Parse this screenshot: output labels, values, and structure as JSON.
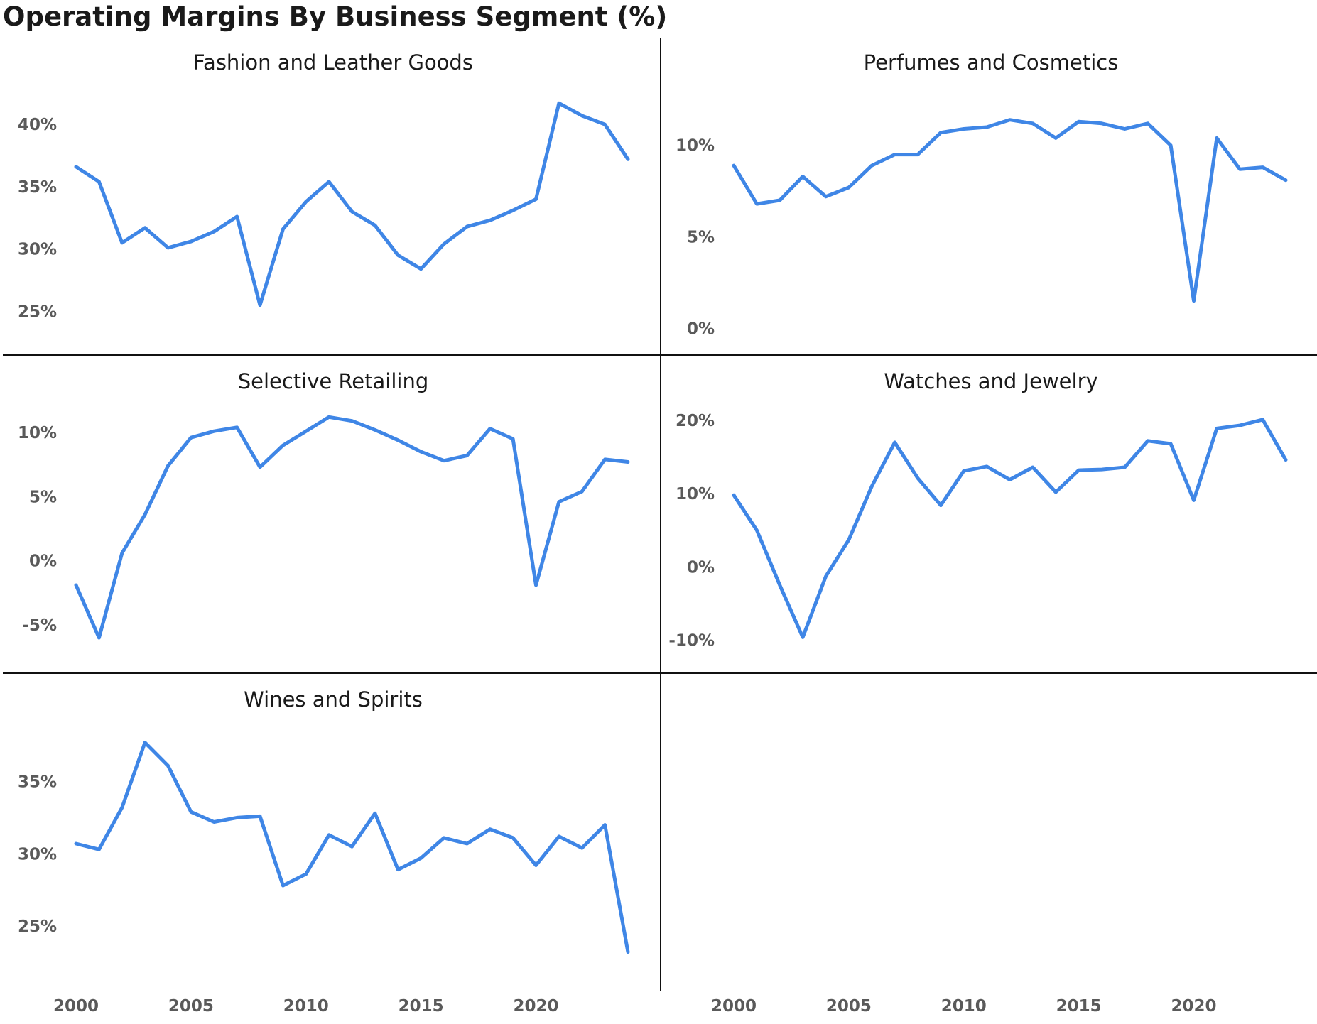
{
  "chart_title": "Operating Margins By Business Segment (%)",
  "colors": {
    "line": "#3f86e6",
    "axis_text": "#5a5a5a",
    "divider": "#111111"
  },
  "chart_data": [
    {
      "type": "line",
      "title": "Fashion and Leather Goods",
      "x": [
        2000,
        2001,
        2002,
        2003,
        2004,
        2005,
        2006,
        2007,
        2008,
        2009,
        2010,
        2011,
        2012,
        2013,
        2014,
        2015,
        2016,
        2017,
        2018,
        2019,
        2020,
        2021,
        2022,
        2023,
        2024
      ],
      "values": [
        36.6,
        35.4,
        30.5,
        31.7,
        30.1,
        30.6,
        31.4,
        32.6,
        25.5,
        31.6,
        33.8,
        35.4,
        33.0,
        31.9,
        29.5,
        28.4,
        30.4,
        31.8,
        32.3,
        33.1,
        34.0,
        41.7,
        40.7,
        40.0,
        37.2
      ],
      "yticks": [
        25,
        30,
        35,
        40
      ],
      "ytick_labels": [
        "25%",
        "30%",
        "35%",
        "40%"
      ],
      "ylim": [
        23.2,
        43.6
      ],
      "xticks": [
        2000,
        2005,
        2010,
        2015,
        2020
      ],
      "xtick_labels": [
        "2000",
        "2005",
        "2010",
        "2015",
        "2020"
      ]
    },
    {
      "type": "line",
      "title": "Perfumes and Cosmetics",
      "x": [
        2000,
        2001,
        2002,
        2003,
        2004,
        2005,
        2006,
        2007,
        2008,
        2009,
        2010,
        2011,
        2012,
        2013,
        2014,
        2015,
        2016,
        2017,
        2018,
        2019,
        2020,
        2021,
        2022,
        2023,
        2024
      ],
      "values": [
        8.9,
        6.8,
        7.0,
        8.3,
        7.2,
        7.7,
        8.9,
        9.5,
        9.5,
        10.7,
        10.9,
        11.0,
        11.4,
        11.2,
        10.4,
        11.3,
        11.2,
        10.9,
        11.2,
        10.0,
        1.5,
        10.4,
        8.7,
        8.8,
        8.1
      ],
      "yticks": [
        0,
        5,
        10
      ],
      "ytick_labels": [
        "0%",
        "5%",
        "10%"
      ],
      "ylim": [
        -0.3,
        13.6
      ],
      "xticks": [
        2000,
        2005,
        2010,
        2015,
        2020
      ],
      "xtick_labels": [
        "2000",
        "2005",
        "2010",
        "2015",
        "2020"
      ]
    },
    {
      "type": "line",
      "title": "Selective Retailing",
      "x": [
        2000,
        2001,
        2002,
        2003,
        2004,
        2005,
        2006,
        2007,
        2008,
        2009,
        2010,
        2011,
        2012,
        2013,
        2014,
        2015,
        2016,
        2017,
        2018,
        2019,
        2020,
        2021,
        2022,
        2023,
        2024
      ],
      "values": [
        -1.9,
        -6.0,
        0.6,
        3.6,
        7.4,
        9.6,
        10.1,
        10.4,
        7.3,
        9.0,
        10.1,
        11.2,
        10.9,
        10.2,
        9.4,
        8.5,
        7.8,
        8.2,
        10.3,
        9.5,
        -1.9,
        4.6,
        5.4,
        7.9,
        7.7
      ],
      "yticks": [
        -5,
        0,
        5,
        10
      ],
      "ytick_labels": [
        "-5%",
        "0%",
        "5%",
        "10%"
      ],
      "ylim": [
        -7.1,
        12.6
      ],
      "xticks": [
        2000,
        2005,
        2010,
        2015,
        2020
      ],
      "xtick_labels": [
        "2000",
        "2005",
        "2010",
        "2015",
        "2020"
      ]
    },
    {
      "type": "line",
      "title": "Watches and Jewelry",
      "x": [
        2000,
        2001,
        2002,
        2003,
        2004,
        2005,
        2006,
        2007,
        2008,
        2009,
        2010,
        2011,
        2012,
        2013,
        2014,
        2015,
        2016,
        2017,
        2018,
        2019,
        2020,
        2021,
        2022,
        2023,
        2024
      ],
      "values": [
        9.8,
        5.0,
        -2.5,
        -9.6,
        -1.3,
        3.7,
        11.0,
        17.0,
        12.1,
        8.4,
        13.1,
        13.7,
        11.9,
        13.6,
        10.2,
        13.2,
        13.3,
        13.6,
        17.2,
        16.8,
        9.1,
        18.9,
        19.3,
        20.1,
        14.6
      ],
      "yticks": [
        -10,
        0,
        10,
        20
      ],
      "ytick_labels": [
        "-10%",
        "0%",
        "10%",
        "20%"
      ],
      "ylim": [
        -11.6,
        22.9
      ],
      "xticks": [
        2000,
        2005,
        2010,
        2015,
        2020
      ],
      "xtick_labels": [
        "2000",
        "2005",
        "2010",
        "2015",
        "2020"
      ]
    },
    {
      "type": "line",
      "title": "Wines and Spirits",
      "x": [
        2000,
        2001,
        2002,
        2003,
        2004,
        2005,
        2006,
        2007,
        2008,
        2009,
        2010,
        2011,
        2012,
        2013,
        2014,
        2015,
        2016,
        2017,
        2018,
        2019,
        2020,
        2021,
        2022,
        2023,
        2024
      ],
      "values": [
        30.7,
        30.3,
        33.2,
        37.7,
        36.1,
        32.9,
        32.2,
        32.5,
        32.6,
        27.8,
        28.6,
        31.3,
        30.5,
        32.8,
        28.9,
        29.7,
        31.1,
        30.7,
        31.7,
        31.1,
        29.2,
        31.2,
        30.4,
        32.0,
        23.2
      ],
      "yticks": [
        25,
        30,
        35
      ],
      "ytick_labels": [
        "25%",
        "30%",
        "35%"
      ],
      "ylim": [
        22.0,
        39.6
      ],
      "xticks": [
        2000,
        2005,
        2010,
        2015,
        2020
      ],
      "xtick_labels": [
        "2000",
        "2005",
        "2010",
        "2015",
        "2020"
      ]
    }
  ],
  "empty_panel_xticks": {
    "xticks": [
      2000,
      2005,
      2010,
      2015,
      2020
    ],
    "xtick_labels": [
      "2000",
      "2005",
      "2010",
      "2015",
      "2020"
    ]
  }
}
